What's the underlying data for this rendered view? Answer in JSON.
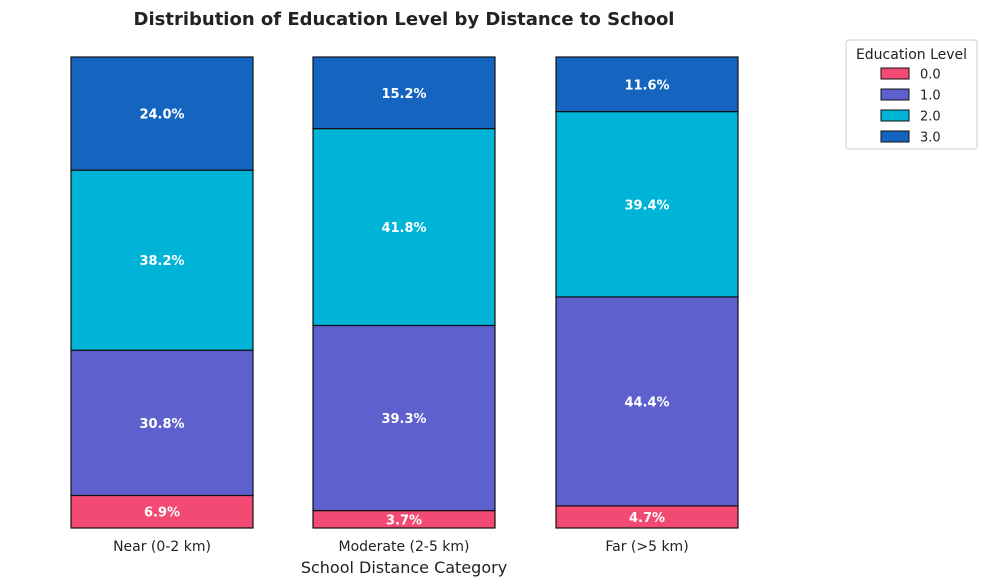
{
  "chart_data": {
    "type": "bar",
    "stacked": true,
    "normalized": true,
    "title": "Distribution of Education Level by Distance to School",
    "xlabel": "School Distance Category",
    "ylabel": "",
    "ylim": [
      0,
      100
    ],
    "categories": [
      "Near (0-2 km)",
      "Moderate (2-5 km)",
      "Far (>5 km)"
    ],
    "legend": {
      "title": "Education Level",
      "placement": "top-right, outside plot"
    },
    "series": [
      {
        "name": "0.0",
        "color": "#F24A72",
        "values": [
          6.9,
          3.7,
          4.7
        ],
        "labels": [
          "6.9%",
          "3.7%",
          "4.7%"
        ]
      },
      {
        "name": "1.0",
        "color": "#5E60CE",
        "values": [
          30.8,
          39.3,
          44.4
        ],
        "labels": [
          "30.8%",
          "39.3%",
          "44.4%"
        ]
      },
      {
        "name": "2.0",
        "color": "#00B4D8",
        "values": [
          38.2,
          41.8,
          39.4
        ],
        "labels": [
          "38.2%",
          "41.8%",
          "39.4%"
        ]
      },
      {
        "name": "3.0",
        "color": "#1565C0",
        "values": [
          24.0,
          15.2,
          11.6
        ],
        "labels": [
          "24.0%",
          "15.2%",
          "11.6%"
        ]
      }
    ],
    "grid": false
  }
}
